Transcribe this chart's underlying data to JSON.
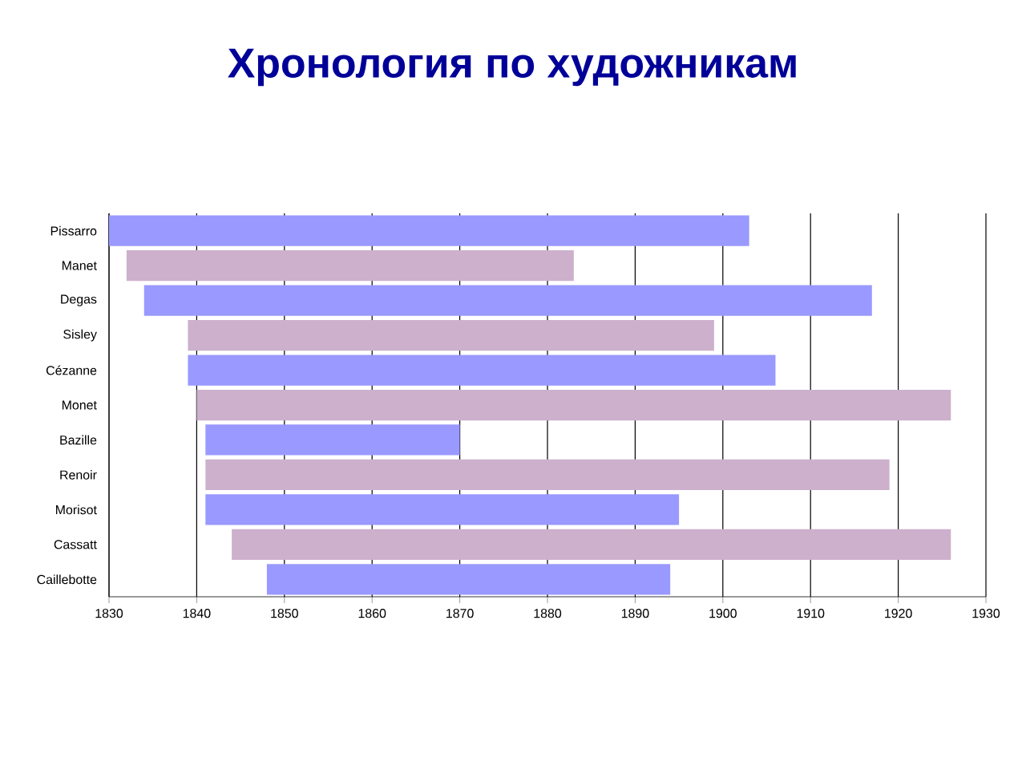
{
  "chart_data": {
    "type": "bar",
    "title": "Хронология по художникам",
    "orientation": "horizontal",
    "categories": [
      "Pissarro",
      "Manet",
      "Degas",
      "Sisley",
      "Cézanne",
      "Monet",
      "Bazille",
      "Renoir",
      "Morisot",
      "Cassatt",
      "Caillebotte"
    ],
    "base": [
      1830,
      1832,
      1834,
      1839,
      1839,
      1840,
      1841,
      1841,
      1841,
      1844,
      1848
    ],
    "values": [
      73,
      51,
      83,
      60,
      67,
      86,
      29,
      78,
      54,
      82,
      46
    ],
    "colors": [
      "#9999ff",
      "#ccb0cc",
      "#9999ff",
      "#ccb0cc",
      "#9999ff",
      "#ccb0cc",
      "#9999ff",
      "#ccb0cc",
      "#9999ff",
      "#ccb0cc",
      "#9999ff"
    ],
    "xlim": [
      1830,
      1930
    ],
    "xticks": [
      1830,
      1840,
      1850,
      1860,
      1870,
      1880,
      1890,
      1900,
      1910,
      1920,
      1930
    ],
    "grid": "x"
  }
}
